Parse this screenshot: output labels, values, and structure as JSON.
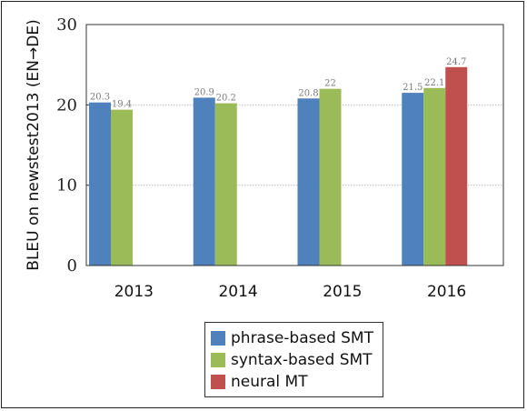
{
  "chart_data": {
    "type": "bar",
    "categories": [
      "2013",
      "2014",
      "2015",
      "2016"
    ],
    "series": [
      {
        "name": "phrase-based SMT",
        "color": "#4f81bd",
        "values": [
          20.3,
          20.9,
          20.8,
          21.5
        ],
        "labels": [
          "20.3",
          "20.9",
          "20.8",
          "21.5"
        ]
      },
      {
        "name": "syntax-based SMT",
        "color": "#9bbb59",
        "values": [
          19.4,
          20.2,
          22,
          22.1
        ],
        "labels": [
          "19.4",
          "20.2",
          "22",
          "22.1"
        ]
      },
      {
        "name": "neural MT",
        "color": "#c0504d",
        "values": [
          null,
          null,
          null,
          24.7
        ],
        "labels": [
          "",
          "",
          "",
          "24.7"
        ]
      }
    ],
    "ylabel": "BLEU on newstest2013 (EN→DE)",
    "ylim": [
      0,
      30
    ],
    "yticks": [
      "0",
      "10",
      "20",
      "30"
    ],
    "grid": "horizontal, dashed",
    "legend": "bottom-center"
  }
}
